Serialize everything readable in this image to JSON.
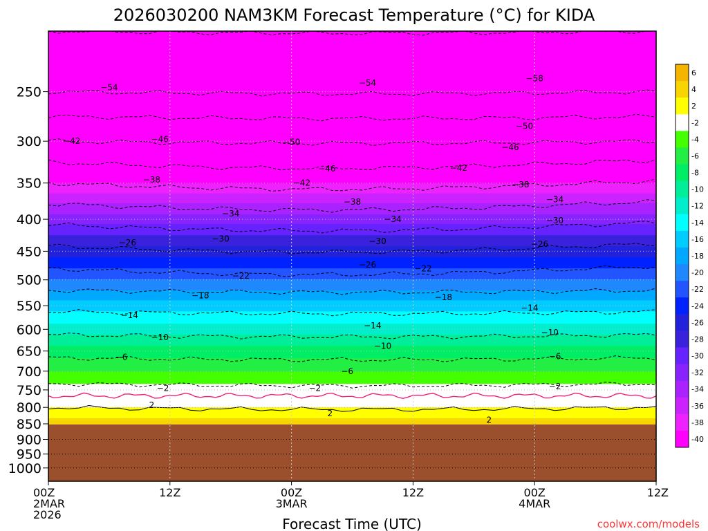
{
  "chart_data": {
    "type": "heatmap",
    "title": "2026030200 NAM3KM Forecast Temperature (°C) for KIDA",
    "xlabel": "Forecast Time (UTC)",
    "ylabel": "",
    "watermark": "coolwx.com/models",
    "x_ticks": [
      {
        "hour": 0,
        "labels": [
          "00Z",
          "2MAR",
          "2026"
        ]
      },
      {
        "hour": 12,
        "labels": [
          "12Z"
        ]
      },
      {
        "hour": 24,
        "labels": [
          "00Z",
          "3MAR"
        ]
      },
      {
        "hour": 36,
        "labels": [
          "12Z"
        ]
      },
      {
        "hour": 48,
        "labels": [
          "00Z",
          "4MAR"
        ]
      },
      {
        "hour": 60,
        "labels": [
          "12Z"
        ]
      }
    ],
    "xlim": [
      0,
      60
    ],
    "y_scale": "log-pressure",
    "y_ticks": [
      250,
      300,
      350,
      400,
      450,
      500,
      550,
      600,
      650,
      700,
      750,
      800,
      850,
      900,
      950,
      1000
    ],
    "ylim": [
      1050,
      200
    ],
    "underground_below_hpa": 852,
    "colorbar": {
      "labels": [
        6,
        4,
        2,
        -2,
        -4,
        -6,
        -8,
        -10,
        -12,
        -14,
        -16,
        -18,
        -20,
        -22,
        -24,
        -26,
        -28,
        -30,
        -32,
        -34,
        -36,
        -38,
        -40
      ],
      "colors": [
        "#f4b400",
        "#f8d400",
        "#ffff00",
        "#ffffff",
        "#44ff00",
        "#22ee44",
        "#00ee66",
        "#00ee99",
        "#00eecc",
        "#00ffff",
        "#00ccff",
        "#00a8ff",
        "#1f88ff",
        "#2255ff",
        "#0022ff",
        "#2222dd",
        "#3a22dd",
        "#6622ff",
        "#8822ff",
        "#aa22ff",
        "#cc22ff",
        "#ee22ff",
        "#ff00ff"
      ]
    },
    "levels": [
      {
        "p": 200,
        "t": -58
      },
      {
        "p": 250,
        "t": -54
      },
      {
        "p": 300,
        "t": -46
      },
      {
        "p": 350,
        "t": -38
      },
      {
        "p": 400,
        "t": -31
      },
      {
        "p": 450,
        "t": -25
      },
      {
        "p": 500,
        "t": -20
      },
      {
        "p": 550,
        "t": -15
      },
      {
        "p": 600,
        "t": -11
      },
      {
        "p": 650,
        "t": -7
      },
      {
        "p": 700,
        "t": -4
      },
      {
        "p": 750,
        "t": -1
      },
      {
        "p": 800,
        "t": 2
      },
      {
        "p": 852,
        "t": 5
      }
    ],
    "contour_labels": [
      {
        "hour": 6.0,
        "p": 246,
        "text": "−54"
      },
      {
        "hour": 31.5,
        "p": 242,
        "text": "−54"
      },
      {
        "hour": 48.0,
        "p": 238,
        "text": "−58"
      },
      {
        "hour": 47.0,
        "p": 284,
        "text": "−50"
      },
      {
        "hour": 2.3,
        "p": 300,
        "text": "−42"
      },
      {
        "hour": 11.0,
        "p": 298,
        "text": "−46"
      },
      {
        "hour": 24.0,
        "p": 301,
        "text": "−50"
      },
      {
        "hour": 45.6,
        "p": 307,
        "text": "−46"
      },
      {
        "hour": 27.5,
        "p": 332,
        "text": "−46"
      },
      {
        "hour": 40.5,
        "p": 331,
        "text": "−42"
      },
      {
        "hour": 10.2,
        "p": 346,
        "text": "−38"
      },
      {
        "hour": 25.0,
        "p": 350,
        "text": "−42"
      },
      {
        "hour": 46.6,
        "p": 352,
        "text": "−38"
      },
      {
        "hour": 50.0,
        "p": 372,
        "text": "−34"
      },
      {
        "hour": 30.0,
        "p": 375,
        "text": "−38"
      },
      {
        "hour": 18.0,
        "p": 392,
        "text": "−34"
      },
      {
        "hour": 34.0,
        "p": 400,
        "text": "−34"
      },
      {
        "hour": 50.0,
        "p": 402,
        "text": "−30"
      },
      {
        "hour": 17.0,
        "p": 430,
        "text": "−30"
      },
      {
        "hour": 32.5,
        "p": 434,
        "text": "−30"
      },
      {
        "hour": 7.8,
        "p": 436,
        "text": "−26"
      },
      {
        "hour": 48.5,
        "p": 438,
        "text": "−26"
      },
      {
        "hour": 31.5,
        "p": 473,
        "text": "−26"
      },
      {
        "hour": 37.0,
        "p": 480,
        "text": "−22"
      },
      {
        "hour": 19.0,
        "p": 493,
        "text": "−22"
      },
      {
        "hour": 15.0,
        "p": 530,
        "text": "−18"
      },
      {
        "hour": 39.0,
        "p": 533,
        "text": "−18"
      },
      {
        "hour": 47.5,
        "p": 555,
        "text": "−14"
      },
      {
        "hour": 8.0,
        "p": 570,
        "text": "−14"
      },
      {
        "hour": 32.0,
        "p": 592,
        "text": "−14"
      },
      {
        "hour": 49.5,
        "p": 607,
        "text": "−10"
      },
      {
        "hour": 11.0,
        "p": 618,
        "text": "−10"
      },
      {
        "hour": 33.0,
        "p": 638,
        "text": "−10"
      },
      {
        "hour": 7.2,
        "p": 665,
        "text": "−6"
      },
      {
        "hour": 50.0,
        "p": 663,
        "text": "−6"
      },
      {
        "hour": 29.5,
        "p": 700,
        "text": "−6"
      },
      {
        "hour": 11.3,
        "p": 745,
        "text": "−2"
      },
      {
        "hour": 26.3,
        "p": 745,
        "text": "−2"
      },
      {
        "hour": 50.0,
        "p": 741,
        "text": "−2"
      },
      {
        "hour": 10.2,
        "p": 793,
        "text": "2"
      },
      {
        "hour": 27.8,
        "p": 818,
        "text": "2"
      },
      {
        "hour": 43.5,
        "p": 838,
        "text": "2"
      }
    ]
  }
}
